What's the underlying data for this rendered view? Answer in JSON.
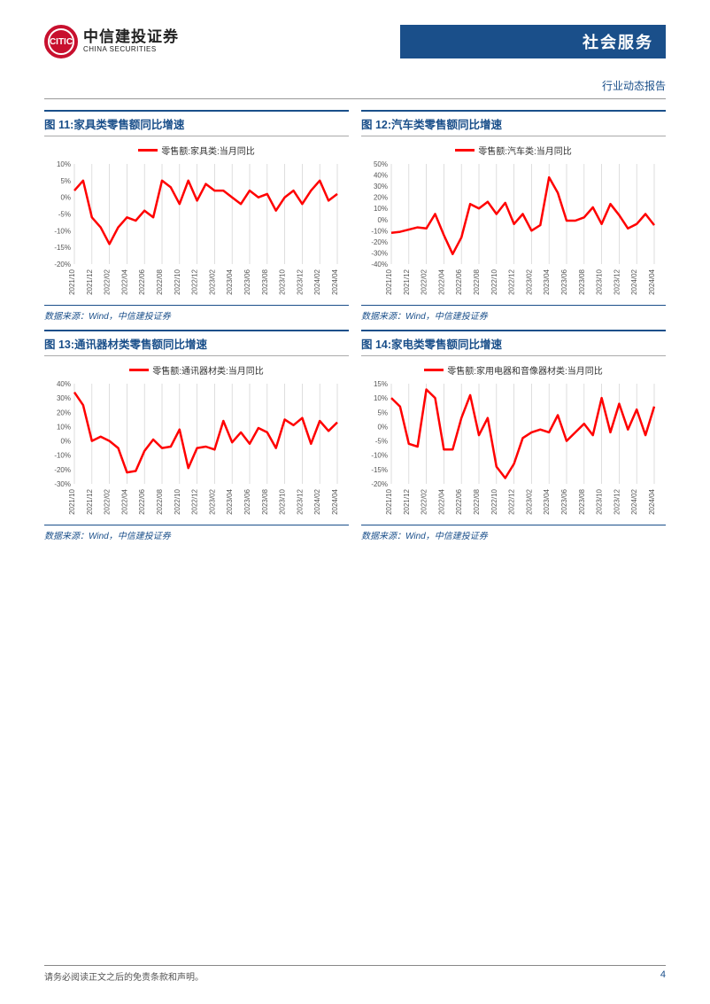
{
  "header": {
    "logo_cn": "中信建投证券",
    "logo_en": "CHINA SECURITIES",
    "category": "社会服务",
    "report_type": "行业动态报告"
  },
  "charts": [
    {
      "key": "c11",
      "title": "图 11:家具类零售额同比增速",
      "legend": "零售额:家具类:当月同比",
      "source": "数据来源：Wind，中信建投证券",
      "type": "line",
      "ylim": [
        -20,
        10
      ],
      "ytick_step": 5,
      "y_suffix": "%",
      "line_color": "#ff0000",
      "grid_color": "#d0d0d0",
      "line_width": 2.5,
      "x_labels": [
        "2021/10",
        "2021/12",
        "2022/02",
        "2022/04",
        "2022/06",
        "2022/08",
        "2022/10",
        "2022/12",
        "2023/02",
        "2023/04",
        "2023/06",
        "2023/08",
        "2023/10",
        "2023/12",
        "2024/02",
        "2024/04"
      ],
      "values": [
        2,
        5,
        -6,
        -9,
        -14,
        -9,
        -6,
        -7,
        -4,
        -6,
        5,
        3,
        -2,
        5,
        -1,
        4,
        2,
        2,
        0,
        -2,
        2,
        0,
        1,
        -4,
        0,
        2,
        -2,
        2,
        5,
        -1,
        1
      ]
    },
    {
      "key": "c12",
      "title": "图 12:汽车类零售额同比增速",
      "legend": "零售额:汽车类:当月同比",
      "source": "数据来源：Wind，中信建投证券",
      "type": "line",
      "ylim": [
        -40,
        50
      ],
      "ytick_step": 10,
      "y_suffix": "%",
      "line_color": "#ff0000",
      "grid_color": "#d0d0d0",
      "line_width": 2.5,
      "x_labels": [
        "2021/10",
        "2021/12",
        "2022/02",
        "2022/04",
        "2022/06",
        "2022/08",
        "2022/10",
        "2022/12",
        "2023/02",
        "2023/04",
        "2023/06",
        "2023/08",
        "2023/10",
        "2023/12",
        "2024/02",
        "2024/04"
      ],
      "values": [
        -12,
        -11,
        -9,
        -7,
        -8,
        5,
        -14,
        -31,
        -16,
        14,
        10,
        16,
        5,
        15,
        -4,
        5,
        -10,
        -5,
        38,
        24,
        -1,
        -1,
        2,
        11,
        -4,
        14,
        4,
        -8,
        -4,
        5,
        -5
      ]
    },
    {
      "key": "c13",
      "title": "图 13:通讯器材类零售额同比增速",
      "legend": "零售额:通讯器材类:当月同比",
      "source": "数据来源：Wind，中信建投证券",
      "type": "line",
      "ylim": [
        -30,
        40
      ],
      "ytick_step": 10,
      "y_suffix": "%",
      "line_color": "#ff0000",
      "grid_color": "#d0d0d0",
      "line_width": 2.5,
      "x_labels": [
        "2021/10",
        "2021/12",
        "2022/02",
        "2022/04",
        "2022/06",
        "2022/08",
        "2022/10",
        "2022/12",
        "2023/02",
        "2023/04",
        "2023/06",
        "2023/08",
        "2023/10",
        "2023/12",
        "2024/02",
        "2024/04"
      ],
      "values": [
        34,
        25,
        0,
        3,
        0,
        -5,
        -22,
        -21,
        -7,
        1,
        -5,
        -4,
        8,
        -19,
        -5,
        -4,
        -6,
        14,
        -1,
        6,
        -2,
        9,
        6,
        -5,
        15,
        11,
        16,
        -2,
        14,
        7,
        13
      ]
    },
    {
      "key": "c14",
      "title": "图 14:家电类零售额同比增速",
      "legend": "零售额:家用电器和音像器材类:当月同比",
      "source": "数据来源：Wind，中信建投证券",
      "type": "line",
      "ylim": [
        -20,
        15
      ],
      "ytick_step": 5,
      "y_suffix": "%",
      "line_color": "#ff0000",
      "grid_color": "#d0d0d0",
      "line_width": 2.5,
      "x_labels": [
        "2021/10",
        "2021/12",
        "2022/02",
        "2022/04",
        "2022/06",
        "2022/08",
        "2022/10",
        "2022/12",
        "2023/02",
        "2023/04",
        "2023/06",
        "2023/08",
        "2023/10",
        "2023/12",
        "2024/02",
        "2024/04"
      ],
      "values": [
        10,
        7,
        -6,
        -7,
        13,
        10,
        -8,
        -8,
        3,
        11,
        -3,
        3,
        -14,
        -18,
        -13,
        -4,
        -2,
        -1,
        -2,
        4,
        -5,
        -2,
        1,
        -3,
        10,
        -2,
        8,
        -1,
        6,
        -3,
        7
      ]
    }
  ],
  "footer": {
    "disclaimer": "请务必阅读正文之后的免责条款和声明。",
    "page_number": "4"
  }
}
